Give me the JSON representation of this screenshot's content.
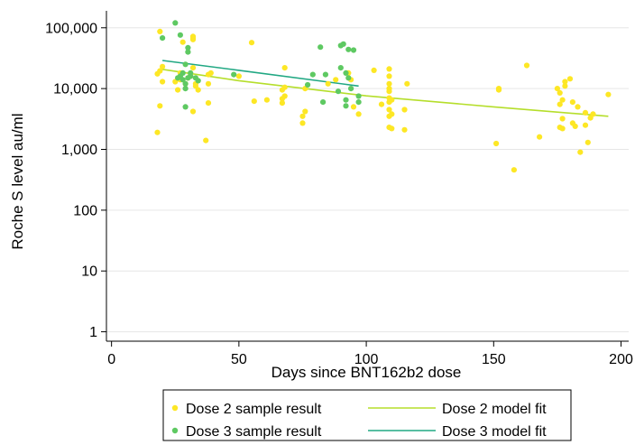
{
  "chart_data": {
    "type": "scatter",
    "xlabel": "Days since BNT162b2 dose",
    "ylabel": "Roche S level au/ml",
    "x_ticks": [
      0,
      50,
      100,
      150,
      200
    ],
    "x_tick_labels": [
      "0",
      "50",
      "100",
      "150",
      "200"
    ],
    "xlim": [
      -2,
      203
    ],
    "y_scale": "log10",
    "y_ticks": [
      1,
      10,
      100,
      1000,
      10000,
      100000
    ],
    "y_tick_labels": [
      "1",
      "10",
      "100",
      "1,000",
      "10,000",
      "100,000"
    ],
    "ylim": [
      0.7,
      190000
    ],
    "grid": "horizontal",
    "legend_position": "bottom",
    "series": [
      {
        "name": "Dose 2 sample result",
        "kind": "points",
        "color": "#fde725",
        "points": [
          [
            18,
            1900
          ],
          [
            18,
            17500
          ],
          [
            19,
            19500
          ],
          [
            19,
            5200
          ],
          [
            19,
            87000
          ],
          [
            20,
            23000
          ],
          [
            20,
            13000
          ],
          [
            25,
            13000
          ],
          [
            26,
            9500
          ],
          [
            27,
            18000
          ],
          [
            27,
            14000
          ],
          [
            28,
            58000
          ],
          [
            29,
            12000
          ],
          [
            30,
            15000
          ],
          [
            31,
            16000
          ],
          [
            31,
            17500
          ],
          [
            32,
            72000
          ],
          [
            32,
            64000
          ],
          [
            32,
            67000
          ],
          [
            32,
            22000
          ],
          [
            32,
            4200
          ],
          [
            33,
            12000
          ],
          [
            33,
            11000
          ],
          [
            34,
            9500
          ],
          [
            37,
            1400
          ],
          [
            38,
            17000
          ],
          [
            38,
            12000
          ],
          [
            38,
            5800
          ],
          [
            39,
            18000
          ],
          [
            50,
            16000
          ],
          [
            55,
            57000
          ],
          [
            56,
            6200
          ],
          [
            61,
            6500
          ],
          [
            67,
            9500
          ],
          [
            67,
            6800
          ],
          [
            67,
            5800
          ],
          [
            68,
            10500
          ],
          [
            68,
            22000
          ],
          [
            68,
            7500
          ],
          [
            75,
            2700
          ],
          [
            75,
            3500
          ],
          [
            76,
            4200
          ],
          [
            76,
            10000
          ],
          [
            85,
            12000
          ],
          [
            88,
            14000
          ],
          [
            93,
            18000
          ],
          [
            94,
            14000
          ],
          [
            95,
            5000
          ],
          [
            97,
            3800
          ],
          [
            103,
            20000
          ],
          [
            106,
            5500
          ],
          [
            109,
            21000
          ],
          [
            109,
            16000
          ],
          [
            109,
            12000
          ],
          [
            109,
            10000
          ],
          [
            109,
            9000
          ],
          [
            109,
            7000
          ],
          [
            109,
            6000
          ],
          [
            109,
            4500
          ],
          [
            109,
            3500
          ],
          [
            109,
            2300
          ],
          [
            110,
            3800
          ],
          [
            110,
            2200
          ],
          [
            110,
            6500
          ],
          [
            115,
            4500
          ],
          [
            115,
            2100
          ],
          [
            116,
            12000
          ],
          [
            151,
            1250
          ],
          [
            152,
            10000
          ],
          [
            152,
            9500
          ],
          [
            158,
            460
          ],
          [
            163,
            24000
          ],
          [
            168,
            1600
          ],
          [
            175,
            10000
          ],
          [
            176,
            8500
          ],
          [
            176,
            5500
          ],
          [
            176,
            2300
          ],
          [
            177,
            6500
          ],
          [
            177,
            3200
          ],
          [
            177,
            2200
          ],
          [
            178,
            11000
          ],
          [
            178,
            13000
          ],
          [
            180,
            14500
          ],
          [
            181,
            6000
          ],
          [
            181,
            2700
          ],
          [
            182,
            2400
          ],
          [
            183,
            5000
          ],
          [
            184,
            900
          ],
          [
            186,
            4000
          ],
          [
            186,
            2500
          ],
          [
            187,
            1300
          ],
          [
            188,
            3300
          ],
          [
            189,
            3800
          ],
          [
            195,
            8000
          ]
        ]
      },
      {
        "name": "Dose 3 sample result",
        "kind": "points",
        "color": "#5ec962",
        "points": [
          [
            20,
            68000
          ],
          [
            25,
            120000
          ],
          [
            26,
            15000
          ],
          [
            27,
            76000
          ],
          [
            27,
            16000
          ],
          [
            28,
            14000
          ],
          [
            28,
            18000
          ],
          [
            29,
            10000
          ],
          [
            29,
            5000
          ],
          [
            29,
            12000
          ],
          [
            29,
            25000
          ],
          [
            30,
            47000
          ],
          [
            30,
            40000
          ],
          [
            30,
            15000
          ],
          [
            31,
            18000
          ],
          [
            31,
            16000
          ],
          [
            33,
            15000
          ],
          [
            34,
            13500
          ],
          [
            48,
            17000
          ],
          [
            77,
            11500
          ],
          [
            79,
            17000
          ],
          [
            82,
            48000
          ],
          [
            83,
            6000
          ],
          [
            84,
            17000
          ],
          [
            89,
            9000
          ],
          [
            90,
            51000
          ],
          [
            90,
            22000
          ],
          [
            91,
            54000
          ],
          [
            92,
            6500
          ],
          [
            92,
            5200
          ],
          [
            92,
            18000
          ],
          [
            93,
            15000
          ],
          [
            93,
            44000
          ],
          [
            94,
            10000
          ],
          [
            95,
            43000
          ],
          [
            97,
            7500
          ],
          [
            97,
            6000
          ]
        ]
      },
      {
        "name": "Dose 2 model fit",
        "kind": "line",
        "color": "#b5de2b",
        "points": [
          [
            19,
            21000
          ],
          [
            50,
            13500
          ],
          [
            100,
            7600
          ],
          [
            150,
            5000
          ],
          [
            195,
            3500
          ]
        ]
      },
      {
        "name": "Dose 3 model fit",
        "kind": "line",
        "color": "#21a883",
        "points": [
          [
            20,
            29000
          ],
          [
            50,
            20000
          ],
          [
            97,
            11000
          ]
        ]
      }
    ],
    "legend": {
      "rows": [
        [
          "Dose 2 sample result",
          "Dose 2 model fit"
        ],
        [
          "Dose 3 sample result",
          "Dose 3 model fit"
        ]
      ]
    }
  }
}
